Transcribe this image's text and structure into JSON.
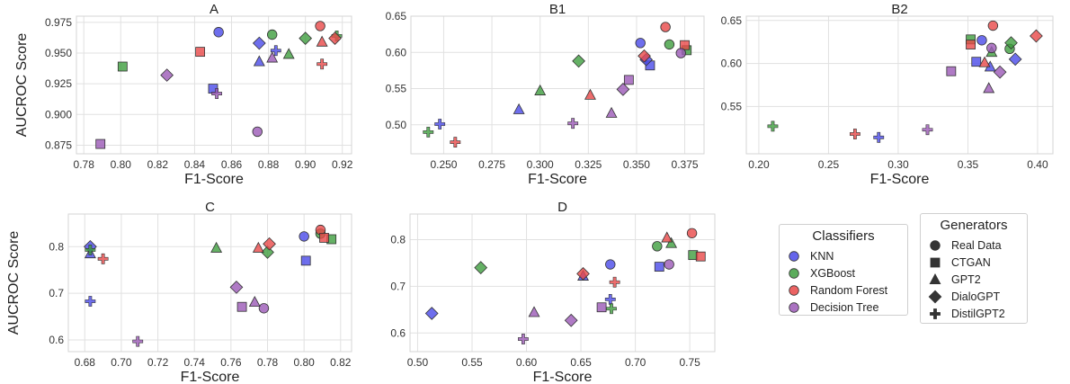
{
  "legends": {
    "classifiers": {
      "title": "Classifiers",
      "items": [
        {
          "name": "KNN",
          "color": "#4a4ae8"
        },
        {
          "name": "XGBoost",
          "color": "#3f9e3f"
        },
        {
          "name": "Random Forest",
          "color": "#e84848"
        },
        {
          "name": "Decision Tree",
          "color": "#9b59b6"
        }
      ]
    },
    "generators": {
      "title": "Generators",
      "items": [
        {
          "name": "Real Data",
          "marker": "circle"
        },
        {
          "name": "CTGAN",
          "marker": "square"
        },
        {
          "name": "GPT2",
          "marker": "triangle"
        },
        {
          "name": "DialoGPT",
          "marker": "diamond"
        },
        {
          "name": "DistilGPT2",
          "marker": "plus"
        }
      ]
    }
  },
  "chart_data": [
    {
      "id": "A",
      "type": "scatter",
      "title": "A",
      "xlabel": "F1-Score",
      "ylabel": "AUCROC Score",
      "xlim": [
        0.776,
        0.925
      ],
      "ylim": [
        0.868,
        0.98
      ],
      "xticks": [
        0.78,
        0.8,
        0.82,
        0.84,
        0.86,
        0.88,
        0.9,
        0.92
      ],
      "yticks": [
        0.875,
        0.9,
        0.925,
        0.95,
        0.975
      ],
      "xtick_labels": [
        "0.78",
        "0.80",
        "0.82",
        "0.84",
        "0.86",
        "0.88",
        "0.90",
        "0.92"
      ],
      "ytick_labels": [
        "0.875",
        "0.900",
        "0.925",
        "0.950",
        "0.975"
      ],
      "points": [
        {
          "classifier": "KNN",
          "generator": "Real Data",
          "x": 0.853,
          "y": 0.967
        },
        {
          "classifier": "KNN",
          "generator": "CTGAN",
          "x": 0.85,
          "y": 0.921
        },
        {
          "classifier": "KNN",
          "generator": "GPT2",
          "x": 0.875,
          "y": 0.943
        },
        {
          "classifier": "KNN",
          "generator": "DialoGPT",
          "x": 0.875,
          "y": 0.958
        },
        {
          "classifier": "KNN",
          "generator": "DistilGPT2",
          "x": 0.884,
          "y": 0.952
        },
        {
          "classifier": "XGBoost",
          "generator": "Real Data",
          "x": 0.882,
          "y": 0.965
        },
        {
          "classifier": "XGBoost",
          "generator": "CTGAN",
          "x": 0.801,
          "y": 0.939
        },
        {
          "classifier": "XGBoost",
          "generator": "GPT2",
          "x": 0.891,
          "y": 0.949
        },
        {
          "classifier": "XGBoost",
          "generator": "DialoGPT",
          "x": 0.9,
          "y": 0.962
        },
        {
          "classifier": "XGBoost",
          "generator": "DistilGPT2",
          "x": 0.917,
          "y": 0.964
        },
        {
          "classifier": "Random Forest",
          "generator": "Real Data",
          "x": 0.908,
          "y": 0.972
        },
        {
          "classifier": "Random Forest",
          "generator": "CTGAN",
          "x": 0.843,
          "y": 0.951
        },
        {
          "classifier": "Random Forest",
          "generator": "GPT2",
          "x": 0.909,
          "y": 0.959
        },
        {
          "classifier": "Random Forest",
          "generator": "DialoGPT",
          "x": 0.916,
          "y": 0.962
        },
        {
          "classifier": "Random Forest",
          "generator": "DistilGPT2",
          "x": 0.909,
          "y": 0.941
        },
        {
          "classifier": "Decision Tree",
          "generator": "Real Data",
          "x": 0.874,
          "y": 0.886
        },
        {
          "classifier": "Decision Tree",
          "generator": "CTGAN",
          "x": 0.789,
          "y": 0.876
        },
        {
          "classifier": "Decision Tree",
          "generator": "GPT2",
          "x": 0.882,
          "y": 0.946
        },
        {
          "classifier": "Decision Tree",
          "generator": "DialoGPT",
          "x": 0.825,
          "y": 0.932
        },
        {
          "classifier": "Decision Tree",
          "generator": "DistilGPT2",
          "x": 0.852,
          "y": 0.917
        }
      ]
    },
    {
      "id": "B1",
      "type": "scatter",
      "title": "B1",
      "xlabel": "F1-Score",
      "ylabel": "",
      "xlim": [
        0.233,
        0.385
      ],
      "ylim": [
        0.46,
        0.65
      ],
      "xticks": [
        0.25,
        0.275,
        0.3,
        0.325,
        0.35,
        0.375
      ],
      "yticks": [
        0.5,
        0.55,
        0.6,
        0.65
      ],
      "xtick_labels": [
        "0.250",
        "0.275",
        "0.300",
        "0.325",
        "0.350",
        "0.375"
      ],
      "ytick_labels": [
        "0.50",
        "0.55",
        "0.60",
        "0.65"
      ],
      "points": [
        {
          "classifier": "KNN",
          "generator": "Real Data",
          "x": 0.352,
          "y": 0.613
        },
        {
          "classifier": "KNN",
          "generator": "CTGAN",
          "x": 0.357,
          "y": 0.582
        },
        {
          "classifier": "KNN",
          "generator": "GPT2",
          "x": 0.289,
          "y": 0.521
        },
        {
          "classifier": "KNN",
          "generator": "DialoGPT",
          "x": 0.355,
          "y": 0.59
        },
        {
          "classifier": "KNN",
          "generator": "DistilGPT2",
          "x": 0.248,
          "y": 0.501
        },
        {
          "classifier": "XGBoost",
          "generator": "Real Data",
          "x": 0.367,
          "y": 0.611
        },
        {
          "classifier": "XGBoost",
          "generator": "CTGAN",
          "x": 0.376,
          "y": 0.603
        },
        {
          "classifier": "XGBoost",
          "generator": "GPT2",
          "x": 0.3,
          "y": 0.547
        },
        {
          "classifier": "XGBoost",
          "generator": "DialoGPT",
          "x": 0.32,
          "y": 0.588
        },
        {
          "classifier": "XGBoost",
          "generator": "DistilGPT2",
          "x": 0.242,
          "y": 0.49
        },
        {
          "classifier": "Random Forest",
          "generator": "Real Data",
          "x": 0.365,
          "y": 0.635
        },
        {
          "classifier": "Random Forest",
          "generator": "CTGAN",
          "x": 0.375,
          "y": 0.61
        },
        {
          "classifier": "Random Forest",
          "generator": "GPT2",
          "x": 0.326,
          "y": 0.541
        },
        {
          "classifier": "Random Forest",
          "generator": "DialoGPT",
          "x": 0.354,
          "y": 0.595
        },
        {
          "classifier": "Random Forest",
          "generator": "DistilGPT2",
          "x": 0.256,
          "y": 0.476
        },
        {
          "classifier": "Decision Tree",
          "generator": "Real Data",
          "x": 0.373,
          "y": 0.599
        },
        {
          "classifier": "Decision Tree",
          "generator": "CTGAN",
          "x": 0.346,
          "y": 0.562
        },
        {
          "classifier": "Decision Tree",
          "generator": "GPT2",
          "x": 0.337,
          "y": 0.516
        },
        {
          "classifier": "Decision Tree",
          "generator": "DialoGPT",
          "x": 0.343,
          "y": 0.549
        },
        {
          "classifier": "Decision Tree",
          "generator": "DistilGPT2",
          "x": 0.317,
          "y": 0.502
        }
      ]
    },
    {
      "id": "B2",
      "type": "scatter",
      "title": "B2",
      "xlabel": "F1-Score",
      "ylabel": "",
      "xlim": [
        0.191,
        0.411
      ],
      "ylim": [
        0.495,
        0.655
      ],
      "xticks": [
        0.2,
        0.25,
        0.3,
        0.35,
        0.4
      ],
      "yticks": [
        0.55,
        0.6,
        0.65
      ],
      "xtick_labels": [
        "0.20",
        "0.25",
        "0.30",
        "0.35",
        "0.40"
      ],
      "ytick_labels": [
        "0.55",
        "0.60",
        "0.65"
      ],
      "points": [
        {
          "classifier": "KNN",
          "generator": "Real Data",
          "x": 0.36,
          "y": 0.627
        },
        {
          "classifier": "KNN",
          "generator": "CTGAN",
          "x": 0.356,
          "y": 0.602
        },
        {
          "classifier": "KNN",
          "generator": "GPT2",
          "x": 0.366,
          "y": 0.596
        },
        {
          "classifier": "KNN",
          "generator": "DialoGPT",
          "x": 0.384,
          "y": 0.605
        },
        {
          "classifier": "KNN",
          "generator": "DistilGPT2",
          "x": 0.286,
          "y": 0.514
        },
        {
          "classifier": "XGBoost",
          "generator": "Real Data",
          "x": 0.38,
          "y": 0.617
        },
        {
          "classifier": "XGBoost",
          "generator": "CTGAN",
          "x": 0.352,
          "y": 0.628
        },
        {
          "classifier": "XGBoost",
          "generator": "GPT2",
          "x": 0.367,
          "y": 0.613
        },
        {
          "classifier": "XGBoost",
          "generator": "DialoGPT",
          "x": 0.381,
          "y": 0.624
        },
        {
          "classifier": "XGBoost",
          "generator": "DistilGPT2",
          "x": 0.21,
          "y": 0.527
        },
        {
          "classifier": "Random Forest",
          "generator": "Real Data",
          "x": 0.368,
          "y": 0.644
        },
        {
          "classifier": "Random Forest",
          "generator": "CTGAN",
          "x": 0.352,
          "y": 0.622
        },
        {
          "classifier": "Random Forest",
          "generator": "GPT2",
          "x": 0.362,
          "y": 0.601
        },
        {
          "classifier": "Random Forest",
          "generator": "DialoGPT",
          "x": 0.399,
          "y": 0.632
        },
        {
          "classifier": "Random Forest",
          "generator": "DistilGPT2",
          "x": 0.269,
          "y": 0.518
        },
        {
          "classifier": "Decision Tree",
          "generator": "Real Data",
          "x": 0.367,
          "y": 0.618
        },
        {
          "classifier": "Decision Tree",
          "generator": "CTGAN",
          "x": 0.338,
          "y": 0.591
        },
        {
          "classifier": "Decision Tree",
          "generator": "GPT2",
          "x": 0.365,
          "y": 0.571
        },
        {
          "classifier": "Decision Tree",
          "generator": "DialoGPT",
          "x": 0.373,
          "y": 0.59
        },
        {
          "classifier": "Decision Tree",
          "generator": "DistilGPT2",
          "x": 0.321,
          "y": 0.523
        }
      ]
    },
    {
      "id": "C",
      "type": "scatter",
      "title": "C",
      "xlabel": "F1-Score",
      "ylabel": "AUCROC Score",
      "xlim": [
        0.671,
        0.826
      ],
      "ylim": [
        0.575,
        0.87
      ],
      "xticks": [
        0.68,
        0.7,
        0.72,
        0.74,
        0.76,
        0.78,
        0.8,
        0.82
      ],
      "yticks": [
        0.6,
        0.7,
        0.8
      ],
      "xtick_labels": [
        "0.68",
        "0.70",
        "0.72",
        "0.74",
        "0.76",
        "0.78",
        "0.80",
        "0.82"
      ],
      "ytick_labels": [
        "0.6",
        "0.7",
        "0.8"
      ],
      "points": [
        {
          "classifier": "KNN",
          "generator": "Real Data",
          "x": 0.8,
          "y": 0.822
        },
        {
          "classifier": "KNN",
          "generator": "CTGAN",
          "x": 0.801,
          "y": 0.77
        },
        {
          "classifier": "KNN",
          "generator": "GPT2",
          "x": 0.683,
          "y": 0.785
        },
        {
          "classifier": "KNN",
          "generator": "DialoGPT",
          "x": 0.683,
          "y": 0.8
        },
        {
          "classifier": "KNN",
          "generator": "DistilGPT2",
          "x": 0.683,
          "y": 0.683
        },
        {
          "classifier": "XGBoost",
          "generator": "Real Data",
          "x": 0.809,
          "y": 0.828
        },
        {
          "classifier": "XGBoost",
          "generator": "CTGAN",
          "x": 0.815,
          "y": 0.816
        },
        {
          "classifier": "XGBoost",
          "generator": "GPT2",
          "x": 0.752,
          "y": 0.797
        },
        {
          "classifier": "XGBoost",
          "generator": "DialoGPT",
          "x": 0.78,
          "y": 0.788
        },
        {
          "classifier": "XGBoost",
          "generator": "DistilGPT2",
          "x": 0.683,
          "y": 0.793
        },
        {
          "classifier": "Random Forest",
          "generator": "Real Data",
          "x": 0.809,
          "y": 0.836
        },
        {
          "classifier": "Random Forest",
          "generator": "CTGAN",
          "x": 0.811,
          "y": 0.819
        },
        {
          "classifier": "Random Forest",
          "generator": "GPT2",
          "x": 0.775,
          "y": 0.797
        },
        {
          "classifier": "Random Forest",
          "generator": "DialoGPT",
          "x": 0.781,
          "y": 0.806
        },
        {
          "classifier": "Random Forest",
          "generator": "DistilGPT2",
          "x": 0.69,
          "y": 0.774
        },
        {
          "classifier": "Decision Tree",
          "generator": "Real Data",
          "x": 0.778,
          "y": 0.668
        },
        {
          "classifier": "Decision Tree",
          "generator": "CTGAN",
          "x": 0.766,
          "y": 0.671
        },
        {
          "classifier": "Decision Tree",
          "generator": "GPT2",
          "x": 0.773,
          "y": 0.681
        },
        {
          "classifier": "Decision Tree",
          "generator": "DialoGPT",
          "x": 0.763,
          "y": 0.713
        },
        {
          "classifier": "Decision Tree",
          "generator": "DistilGPT2",
          "x": 0.709,
          "y": 0.597
        }
      ]
    },
    {
      "id": "D",
      "type": "scatter",
      "title": "D",
      "xlabel": "F1-Score",
      "ylabel": "",
      "xlim": [
        0.493,
        0.773
      ],
      "ylim": [
        0.56,
        0.855
      ],
      "xticks": [
        0.5,
        0.55,
        0.6,
        0.65,
        0.7,
        0.75
      ],
      "yticks": [
        0.6,
        0.7,
        0.8
      ],
      "xtick_labels": [
        "0.50",
        "0.55",
        "0.60",
        "0.65",
        "0.70",
        "0.75"
      ],
      "ytick_labels": [
        "0.6",
        "0.7",
        "0.8"
      ],
      "points": [
        {
          "classifier": "KNN",
          "generator": "Real Data",
          "x": 0.677,
          "y": 0.747
        },
        {
          "classifier": "KNN",
          "generator": "CTGAN",
          "x": 0.722,
          "y": 0.742
        },
        {
          "classifier": "KNN",
          "generator": "GPT2",
          "x": 0.652,
          "y": 0.722
        },
        {
          "classifier": "KNN",
          "generator": "DialoGPT",
          "x": 0.513,
          "y": 0.642
        },
        {
          "classifier": "KNN",
          "generator": "DistilGPT2",
          "x": 0.677,
          "y": 0.672
        },
        {
          "classifier": "XGBoost",
          "generator": "Real Data",
          "x": 0.72,
          "y": 0.786
        },
        {
          "classifier": "XGBoost",
          "generator": "CTGAN",
          "x": 0.753,
          "y": 0.767
        },
        {
          "classifier": "XGBoost",
          "generator": "GPT2",
          "x": 0.733,
          "y": 0.792
        },
        {
          "classifier": "XGBoost",
          "generator": "DialoGPT",
          "x": 0.558,
          "y": 0.74
        },
        {
          "classifier": "XGBoost",
          "generator": "DistilGPT2",
          "x": 0.678,
          "y": 0.652
        },
        {
          "classifier": "Random Forest",
          "generator": "Real Data",
          "x": 0.752,
          "y": 0.814
        },
        {
          "classifier": "Random Forest",
          "generator": "CTGAN",
          "x": 0.76,
          "y": 0.764
        },
        {
          "classifier": "Random Forest",
          "generator": "GPT2",
          "x": 0.729,
          "y": 0.804
        },
        {
          "classifier": "Random Forest",
          "generator": "DialoGPT",
          "x": 0.652,
          "y": 0.727
        },
        {
          "classifier": "Random Forest",
          "generator": "DistilGPT2",
          "x": 0.681,
          "y": 0.709
        },
        {
          "classifier": "Decision Tree",
          "generator": "Real Data",
          "x": 0.731,
          "y": 0.747
        },
        {
          "classifier": "Decision Tree",
          "generator": "CTGAN",
          "x": 0.669,
          "y": 0.655
        },
        {
          "classifier": "Decision Tree",
          "generator": "GPT2",
          "x": 0.607,
          "y": 0.644
        },
        {
          "classifier": "Decision Tree",
          "generator": "DialoGPT",
          "x": 0.641,
          "y": 0.627
        },
        {
          "classifier": "Decision Tree",
          "generator": "DistilGPT2",
          "x": 0.597,
          "y": 0.587
        }
      ]
    }
  ]
}
